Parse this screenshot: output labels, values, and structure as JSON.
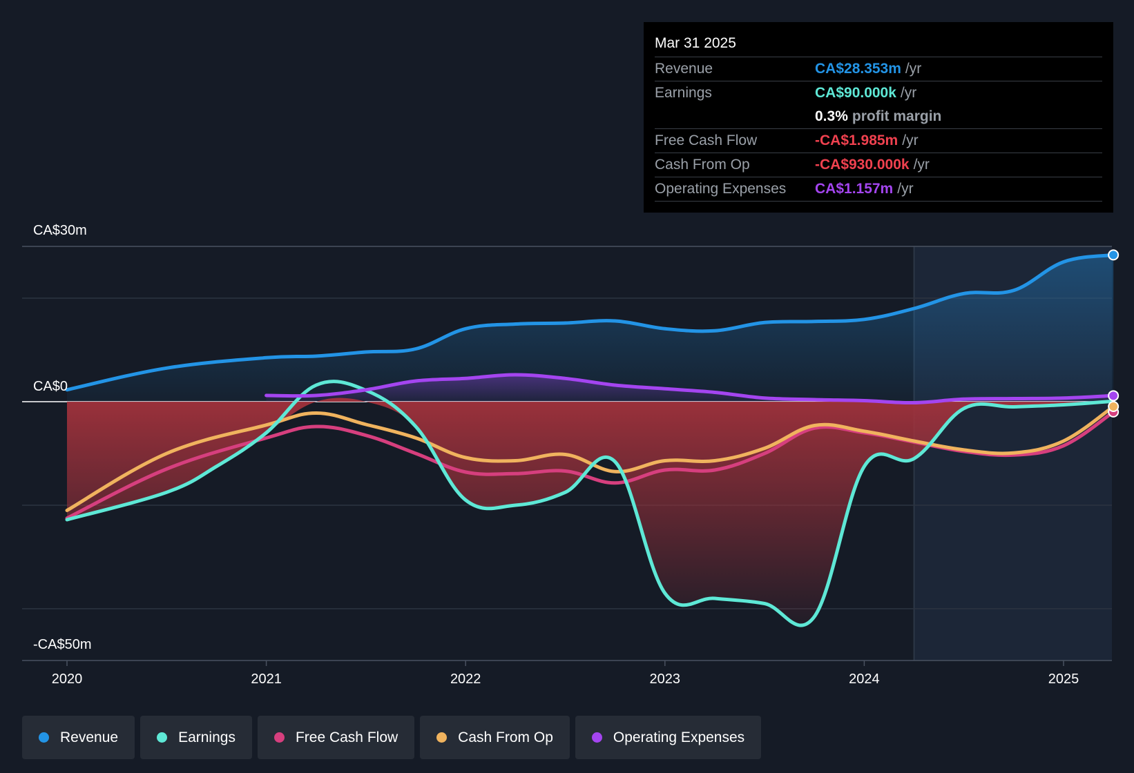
{
  "colors": {
    "background": "#151b26",
    "revenue": "#2394e6",
    "earnings": "#5ee8d6",
    "free_cash_flow": "#d63f7e",
    "cash_from_op": "#f0b35e",
    "operating_expenses": "#a445f0",
    "negative_area": "#a3323c",
    "negative_text": "#f0414f"
  },
  "tooltip": {
    "date": "Mar 31 2025",
    "rows": [
      {
        "label": "Revenue",
        "value": "CA$28.353m",
        "unit": "/yr"
      },
      {
        "label": "Earnings",
        "value": "CA$90.000k",
        "unit": "/yr"
      },
      {
        "label": "",
        "value": "0.3%",
        "unit": "profit margin"
      },
      {
        "label": "Free Cash Flow",
        "value": "-CA$1.985m",
        "unit": "/yr"
      },
      {
        "label": "Cash From Op",
        "value": "-CA$930.000k",
        "unit": "/yr"
      },
      {
        "label": "Operating Expenses",
        "value": "CA$1.157m",
        "unit": "/yr"
      }
    ]
  },
  "legend": {
    "items": [
      {
        "label": "Revenue",
        "icon": "circle"
      },
      {
        "label": "Earnings",
        "icon": "circle"
      },
      {
        "label": "Free Cash Flow",
        "icon": "circle"
      },
      {
        "label": "Cash From Op",
        "icon": "circle"
      },
      {
        "label": "Operating Expenses",
        "icon": "circle"
      }
    ]
  },
  "chart_data": {
    "type": "line",
    "title": "",
    "xlabel": "",
    "ylabel": "",
    "unit": "CA$m",
    "ylim": [
      -50,
      30
    ],
    "xlim": [
      2020.0,
      2025.25
    ],
    "y_axis_labels": [
      "CA$30m",
      "CA$0",
      "-CA$50m"
    ],
    "x_tick_labels": [
      "2020",
      "2021",
      "2022",
      "2023",
      "2024",
      "2025"
    ],
    "x_ticks": [
      2020,
      2021,
      2022,
      2023,
      2024,
      2025
    ],
    "forecast_shade_from": 2024.25,
    "series": [
      {
        "name": "Revenue",
        "x": [
          2020.0,
          2020.5,
          2021.0,
          2021.25,
          2021.5,
          2021.75,
          2022.0,
          2022.25,
          2022.5,
          2022.75,
          2023.0,
          2023.25,
          2023.5,
          2023.75,
          2024.0,
          2024.25,
          2024.5,
          2024.75,
          2025.0,
          2025.25
        ],
        "values": [
          2.3,
          6.5,
          8.5,
          8.8,
          9.6,
          10.2,
          14.1,
          15.0,
          15.2,
          15.6,
          14.1,
          13.7,
          15.3,
          15.5,
          15.9,
          18.0,
          20.9,
          21.5,
          27.0,
          28.353
        ]
      },
      {
        "name": "Earnings",
        "x": [
          2020.0,
          2020.5,
          2020.75,
          2021.0,
          2021.25,
          2021.5,
          2021.75,
          2022.0,
          2022.25,
          2022.5,
          2022.75,
          2023.0,
          2023.25,
          2023.5,
          2023.75,
          2024.0,
          2024.25,
          2024.5,
          2024.75,
          2025.0,
          2025.25
        ],
        "values": [
          -22.8,
          -17.5,
          -12.5,
          -6.0,
          3.2,
          2.2,
          -4.8,
          -19.0,
          -20.0,
          -17.5,
          -11.6,
          -37.0,
          -38.0,
          -39.0,
          -41.5,
          -12.5,
          -11.0,
          -1.3,
          -1.0,
          -0.6,
          0.09
        ]
      },
      {
        "name": "Free Cash Flow",
        "x": [
          2020.0,
          2020.5,
          2021.0,
          2021.25,
          2021.5,
          2021.75,
          2022.0,
          2022.25,
          2022.5,
          2022.75,
          2023.0,
          2023.25,
          2023.5,
          2023.75,
          2024.0,
          2024.25,
          2024.5,
          2024.75,
          2025.0,
          2025.25
        ],
        "values": [
          -22.5,
          -13.0,
          -7.0,
          -4.8,
          -6.5,
          -10.0,
          -13.6,
          -13.9,
          -13.4,
          -15.7,
          -13.2,
          -13.2,
          -10.0,
          -5.1,
          -6.0,
          -7.8,
          -9.6,
          -10.3,
          -8.5,
          -1.985
        ]
      },
      {
        "name": "Cash From Op",
        "x": [
          2020.0,
          2020.5,
          2021.0,
          2021.25,
          2021.5,
          2021.75,
          2022.0,
          2022.25,
          2022.5,
          2022.75,
          2023.0,
          2023.25,
          2023.5,
          2023.75,
          2024.0,
          2024.25,
          2024.5,
          2024.75,
          2025.0,
          2025.25
        ],
        "values": [
          -21.0,
          -10.0,
          -4.5,
          -2.2,
          -4.4,
          -7.0,
          -10.8,
          -11.4,
          -10.2,
          -13.5,
          -11.4,
          -11.4,
          -9.0,
          -4.6,
          -5.7,
          -7.6,
          -9.3,
          -9.9,
          -7.6,
          -0.93
        ]
      },
      {
        "name": "Operating Expenses",
        "x": [
          2021.0,
          2021.25,
          2021.5,
          2021.75,
          2022.0,
          2022.25,
          2022.5,
          2022.75,
          2023.0,
          2023.25,
          2023.5,
          2023.75,
          2024.0,
          2024.25,
          2024.5,
          2024.75,
          2025.0,
          2025.25
        ],
        "values": [
          1.2,
          1.2,
          2.3,
          4.0,
          4.5,
          5.2,
          4.5,
          3.2,
          2.5,
          1.8,
          0.7,
          0.4,
          0.2,
          -0.2,
          0.5,
          0.6,
          0.7,
          1.157
        ]
      }
    ]
  }
}
